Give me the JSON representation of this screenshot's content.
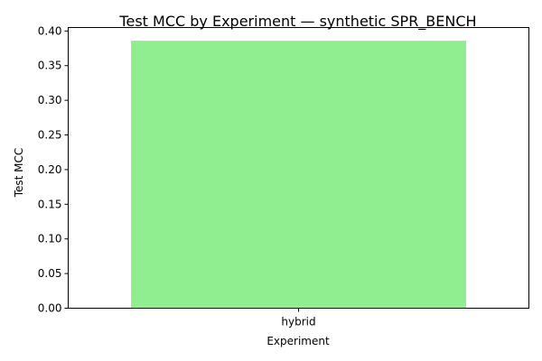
{
  "chart_data": {
    "type": "bar",
    "title": "Test MCC by Experiment — synthetic SPR_BENCH",
    "xlabel": "Experiment",
    "ylabel": "Test MCC",
    "categories": [
      "hybrid"
    ],
    "values": [
      0.386
    ],
    "ylim": [
      0,
      0.405
    ],
    "yticks": [
      "0.00",
      "0.05",
      "0.10",
      "0.15",
      "0.20",
      "0.25",
      "0.30",
      "0.35",
      "0.40"
    ],
    "bar_color": "#90ee90",
    "grid": false,
    "legend": "none"
  }
}
